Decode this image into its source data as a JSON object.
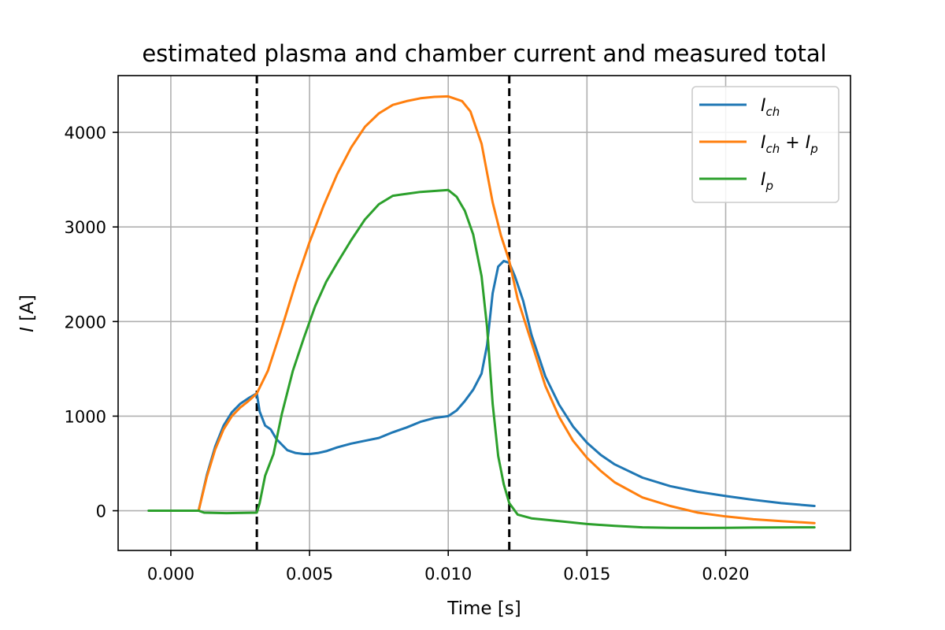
{
  "chart_data": {
    "type": "line",
    "title": "estimated plasma and chamber current and measured total",
    "xlabel": "Time [s]",
    "ylabel_var": "I",
    "ylabel_unit": " [A]",
    "xlim": [
      -0.0019,
      0.0245
    ],
    "ylim": [
      -420,
      4600
    ],
    "x_ticks": [
      {
        "value": 0.0,
        "label": "0.000"
      },
      {
        "value": 0.005,
        "label": "0.005"
      },
      {
        "value": 0.01,
        "label": "0.010"
      },
      {
        "value": 0.015,
        "label": "0.015"
      },
      {
        "value": 0.02,
        "label": "0.020"
      }
    ],
    "y_ticks": [
      {
        "value": 0,
        "label": "0"
      },
      {
        "value": 1000,
        "label": "1000"
      },
      {
        "value": 2000,
        "label": "2000"
      },
      {
        "value": 3000,
        "label": "3000"
      },
      {
        "value": 4000,
        "label": "4000"
      }
    ],
    "grid": true,
    "legend_position": "top-right",
    "vlines": [
      0.0031,
      0.0122
    ],
    "series": [
      {
        "legend_main": "I",
        "legend_sub": "ch",
        "legend_extra": "",
        "color": "#1f77b4",
        "points": [
          [
            -0.0008,
            0
          ],
          [
            0.001,
            0
          ],
          [
            0.0013,
            380
          ],
          [
            0.0016,
            680
          ],
          [
            0.0019,
            900
          ],
          [
            0.0022,
            1040
          ],
          [
            0.0025,
            1130
          ],
          [
            0.0028,
            1190
          ],
          [
            0.0031,
            1240
          ],
          [
            0.0032,
            1050
          ],
          [
            0.0034,
            900
          ],
          [
            0.0036,
            860
          ],
          [
            0.0038,
            760
          ],
          [
            0.004,
            700
          ],
          [
            0.0042,
            640
          ],
          [
            0.0045,
            610
          ],
          [
            0.0048,
            600
          ],
          [
            0.005,
            600
          ],
          [
            0.0053,
            610
          ],
          [
            0.0056,
            630
          ],
          [
            0.006,
            670
          ],
          [
            0.0065,
            710
          ],
          [
            0.007,
            740
          ],
          [
            0.0075,
            770
          ],
          [
            0.008,
            830
          ],
          [
            0.0085,
            880
          ],
          [
            0.009,
            940
          ],
          [
            0.0095,
            980
          ],
          [
            0.01,
            1000
          ],
          [
            0.0103,
            1060
          ],
          [
            0.0106,
            1160
          ],
          [
            0.0109,
            1280
          ],
          [
            0.0112,
            1450
          ],
          [
            0.0114,
            1750
          ],
          [
            0.0116,
            2300
          ],
          [
            0.0118,
            2580
          ],
          [
            0.012,
            2640
          ],
          [
            0.0122,
            2620
          ],
          [
            0.0124,
            2480
          ],
          [
            0.0127,
            2220
          ],
          [
            0.013,
            1860
          ],
          [
            0.0135,
            1420
          ],
          [
            0.014,
            1120
          ],
          [
            0.0145,
            890
          ],
          [
            0.015,
            720
          ],
          [
            0.0155,
            590
          ],
          [
            0.016,
            490
          ],
          [
            0.017,
            350
          ],
          [
            0.018,
            260
          ],
          [
            0.019,
            200
          ],
          [
            0.02,
            155
          ],
          [
            0.021,
            115
          ],
          [
            0.022,
            80
          ],
          [
            0.0232,
            50
          ]
        ]
      },
      {
        "legend_main": "I",
        "legend_sub": "ch",
        "legend_extra": "p",
        "color": "#ff7f0e",
        "points": [
          [
            0.001,
            0
          ],
          [
            0.0013,
            360
          ],
          [
            0.0016,
            650
          ],
          [
            0.0019,
            860
          ],
          [
            0.0022,
            1000
          ],
          [
            0.0025,
            1090
          ],
          [
            0.0028,
            1160
          ],
          [
            0.0031,
            1240
          ],
          [
            0.0035,
            1480
          ],
          [
            0.004,
            1930
          ],
          [
            0.0045,
            2410
          ],
          [
            0.005,
            2840
          ],
          [
            0.0055,
            3220
          ],
          [
            0.006,
            3560
          ],
          [
            0.0065,
            3840
          ],
          [
            0.007,
            4060
          ],
          [
            0.0075,
            4200
          ],
          [
            0.008,
            4290
          ],
          [
            0.0085,
            4330
          ],
          [
            0.009,
            4360
          ],
          [
            0.0095,
            4375
          ],
          [
            0.01,
            4380
          ],
          [
            0.0105,
            4330
          ],
          [
            0.0108,
            4220
          ],
          [
            0.0112,
            3880
          ],
          [
            0.0116,
            3260
          ],
          [
            0.0119,
            2910
          ],
          [
            0.0122,
            2640
          ],
          [
            0.0125,
            2240
          ],
          [
            0.013,
            1780
          ],
          [
            0.0135,
            1320
          ],
          [
            0.014,
            990
          ],
          [
            0.0145,
            740
          ],
          [
            0.015,
            560
          ],
          [
            0.0155,
            420
          ],
          [
            0.016,
            300
          ],
          [
            0.017,
            140
          ],
          [
            0.018,
            50
          ],
          [
            0.019,
            -20
          ],
          [
            0.02,
            -60
          ],
          [
            0.021,
            -90
          ],
          [
            0.022,
            -110
          ],
          [
            0.0232,
            -130
          ]
        ]
      },
      {
        "legend_main": "I",
        "legend_sub": "p",
        "legend_extra": "",
        "color": "#2ca02c",
        "points": [
          [
            -0.0008,
            0
          ],
          [
            0.001,
            0
          ],
          [
            0.0012,
            -20
          ],
          [
            0.002,
            -25
          ],
          [
            0.0031,
            -20
          ],
          [
            0.0032,
            80
          ],
          [
            0.0034,
            370
          ],
          [
            0.0037,
            600
          ],
          [
            0.004,
            1020
          ],
          [
            0.0044,
            1480
          ],
          [
            0.0048,
            1830
          ],
          [
            0.0052,
            2160
          ],
          [
            0.0056,
            2420
          ],
          [
            0.006,
            2620
          ],
          [
            0.0065,
            2860
          ],
          [
            0.007,
            3080
          ],
          [
            0.0075,
            3240
          ],
          [
            0.008,
            3330
          ],
          [
            0.0085,
            3350
          ],
          [
            0.009,
            3370
          ],
          [
            0.0095,
            3380
          ],
          [
            0.01,
            3390
          ],
          [
            0.0103,
            3320
          ],
          [
            0.0106,
            3170
          ],
          [
            0.0109,
            2920
          ],
          [
            0.0112,
            2480
          ],
          [
            0.0114,
            1940
          ],
          [
            0.0116,
            1130
          ],
          [
            0.0118,
            580
          ],
          [
            0.012,
            280
          ],
          [
            0.0122,
            80
          ],
          [
            0.0125,
            -40
          ],
          [
            0.013,
            -80
          ],
          [
            0.014,
            -110
          ],
          [
            0.015,
            -140
          ],
          [
            0.016,
            -160
          ],
          [
            0.017,
            -175
          ],
          [
            0.018,
            -180
          ],
          [
            0.019,
            -182
          ],
          [
            0.02,
            -180
          ],
          [
            0.021,
            -178
          ],
          [
            0.022,
            -176
          ],
          [
            0.0232,
            -175
          ]
        ]
      }
    ]
  }
}
